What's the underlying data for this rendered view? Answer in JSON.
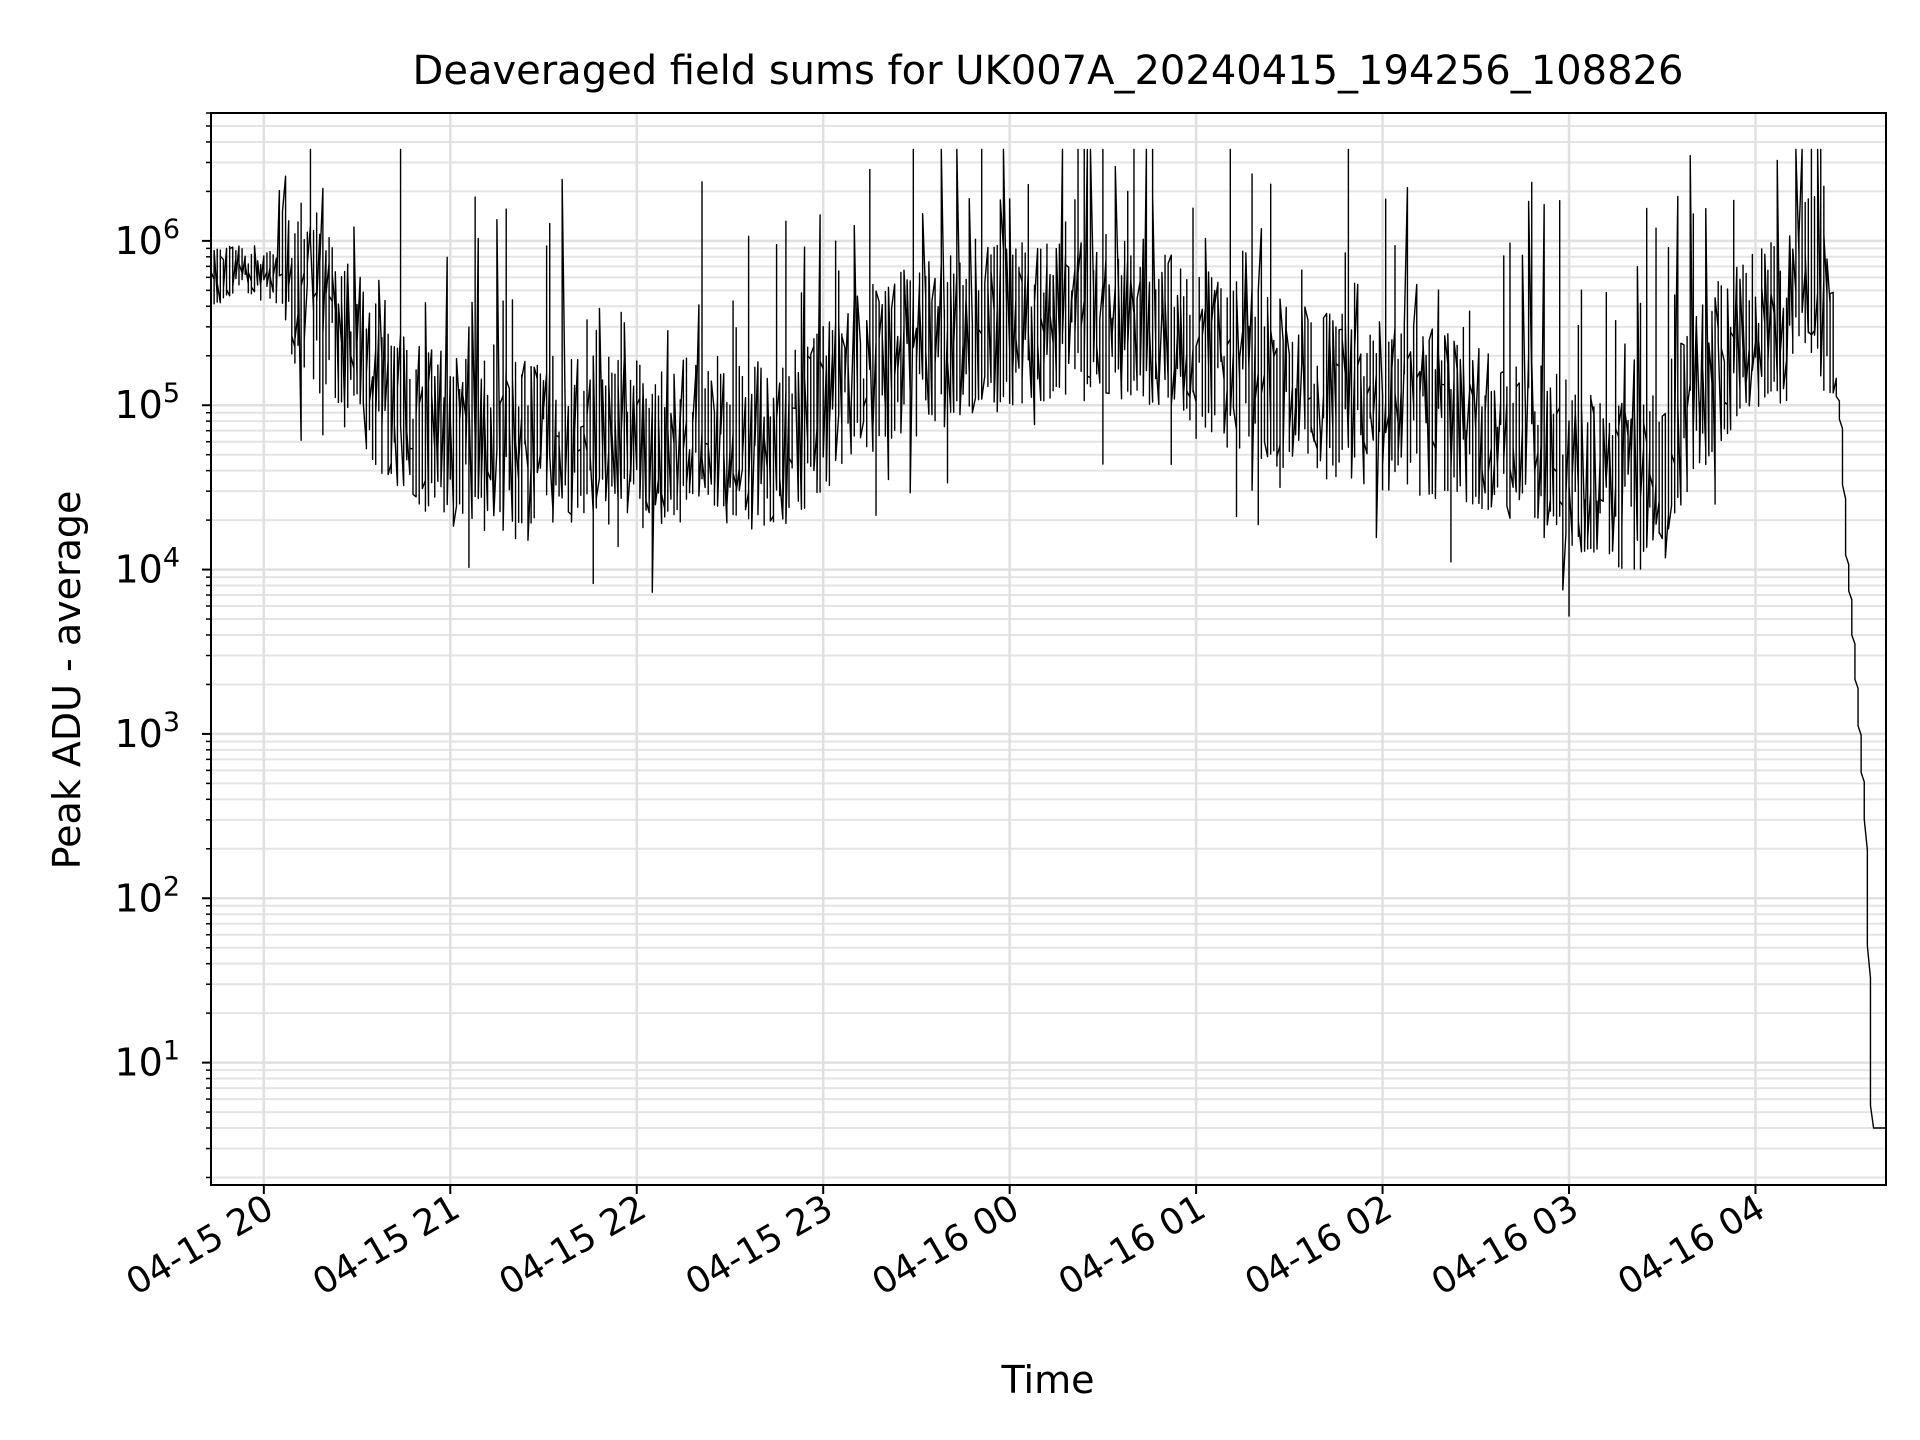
{
  "chart_data": {
    "type": "line",
    "title": "Deaveraged field sums for UK007A_20240415_194256_108826",
    "xlabel": "Time",
    "ylabel": "Peak ADU - average",
    "yscale": "log",
    "ylim": [
      1.8,
      6000000
    ],
    "xlim": [
      "2024-04-15 19:43",
      "2024-04-16 04:42"
    ],
    "grid": true,
    "legend": "none",
    "line_color": "#000000",
    "x_ticks": [
      {
        "t": "2024-04-15 20:00",
        "label": "04-15 20"
      },
      {
        "t": "2024-04-15 21:00",
        "label": "04-15 21"
      },
      {
        "t": "2024-04-15 22:00",
        "label": "04-15 22"
      },
      {
        "t": "2024-04-15 23:00",
        "label": "04-15 23"
      },
      {
        "t": "2024-04-16 00:00",
        "label": "04-16 00"
      },
      {
        "t": "2024-04-16 01:00",
        "label": "04-16 01"
      },
      {
        "t": "2024-04-16 02:00",
        "label": "04-16 02"
      },
      {
        "t": "2024-04-16 03:00",
        "label": "04-16 03"
      },
      {
        "t": "2024-04-16 04:00",
        "label": "04-16 04"
      }
    ],
    "y_ticks": [
      {
        "value": 10,
        "base": "10",
        "exp": "1"
      },
      {
        "value": 100,
        "base": "10",
        "exp": "2"
      },
      {
        "value": 1000,
        "base": "10",
        "exp": "3"
      },
      {
        "value": 10000,
        "base": "10",
        "exp": "4"
      },
      {
        "value": 100000,
        "base": "10",
        "exp": "5"
      },
      {
        "value": 1000000,
        "base": "10",
        "exp": "6"
      }
    ],
    "series": [
      {
        "x": [
          "2024-04-15 19:43",
          "2024-04-15 19:50",
          "2024-04-15 20:00",
          "2024-04-15 20:10",
          "2024-04-15 20:20",
          "2024-04-15 20:30",
          "2024-04-15 20:40",
          "2024-04-15 20:50",
          "2024-04-15 21:00",
          "2024-04-15 21:15",
          "2024-04-15 21:30",
          "2024-04-15 21:45",
          "2024-04-15 22:00",
          "2024-04-15 22:15",
          "2024-04-15 22:30",
          "2024-04-15 22:45",
          "2024-04-15 23:00",
          "2024-04-15 23:15",
          "2024-04-15 23:30",
          "2024-04-15 23:45",
          "2024-04-16 00:00",
          "2024-04-16 00:15",
          "2024-04-16 00:30",
          "2024-04-16 00:45",
          "2024-04-16 01:00",
          "2024-04-16 01:15",
          "2024-04-16 01:30",
          "2024-04-16 01:45",
          "2024-04-16 02:00",
          "2024-04-16 02:15",
          "2024-04-16 02:30",
          "2024-04-16 02:45",
          "2024-04-16 03:00",
          "2024-04-16 03:10",
          "2024-04-16 03:20",
          "2024-04-16 03:30",
          "2024-04-16 03:40",
          "2024-04-16 03:50",
          "2024-04-16 04:00",
          "2024-04-16 04:10",
          "2024-04-16 04:15",
          "2024-04-16 04:20",
          "2024-04-16 04:25",
          "2024-04-16 04:28",
          "2024-04-16 04:30",
          "2024-04-16 04:33",
          "2024-04-16 04:36",
          "2024-04-16 04:38",
          "2024-04-16 04:42"
        ],
        "y": [
          550000,
          700000,
          650000,
          600000,
          350000,
          200000,
          120000,
          80000,
          60000,
          55000,
          65000,
          60000,
          60000,
          58000,
          60000,
          55000,
          90000,
          170000,
          210000,
          260000,
          300000,
          330000,
          350000,
          320000,
          210000,
          170000,
          130000,
          110000,
          100000,
          90000,
          80000,
          60000,
          45000,
          35000,
          30000,
          40000,
          110000,
          200000,
          280000,
          320000,
          500000,
          700000,
          200000,
          80000,
          12000,
          2000,
          300,
          4,
          4
        ]
      }
    ]
  }
}
